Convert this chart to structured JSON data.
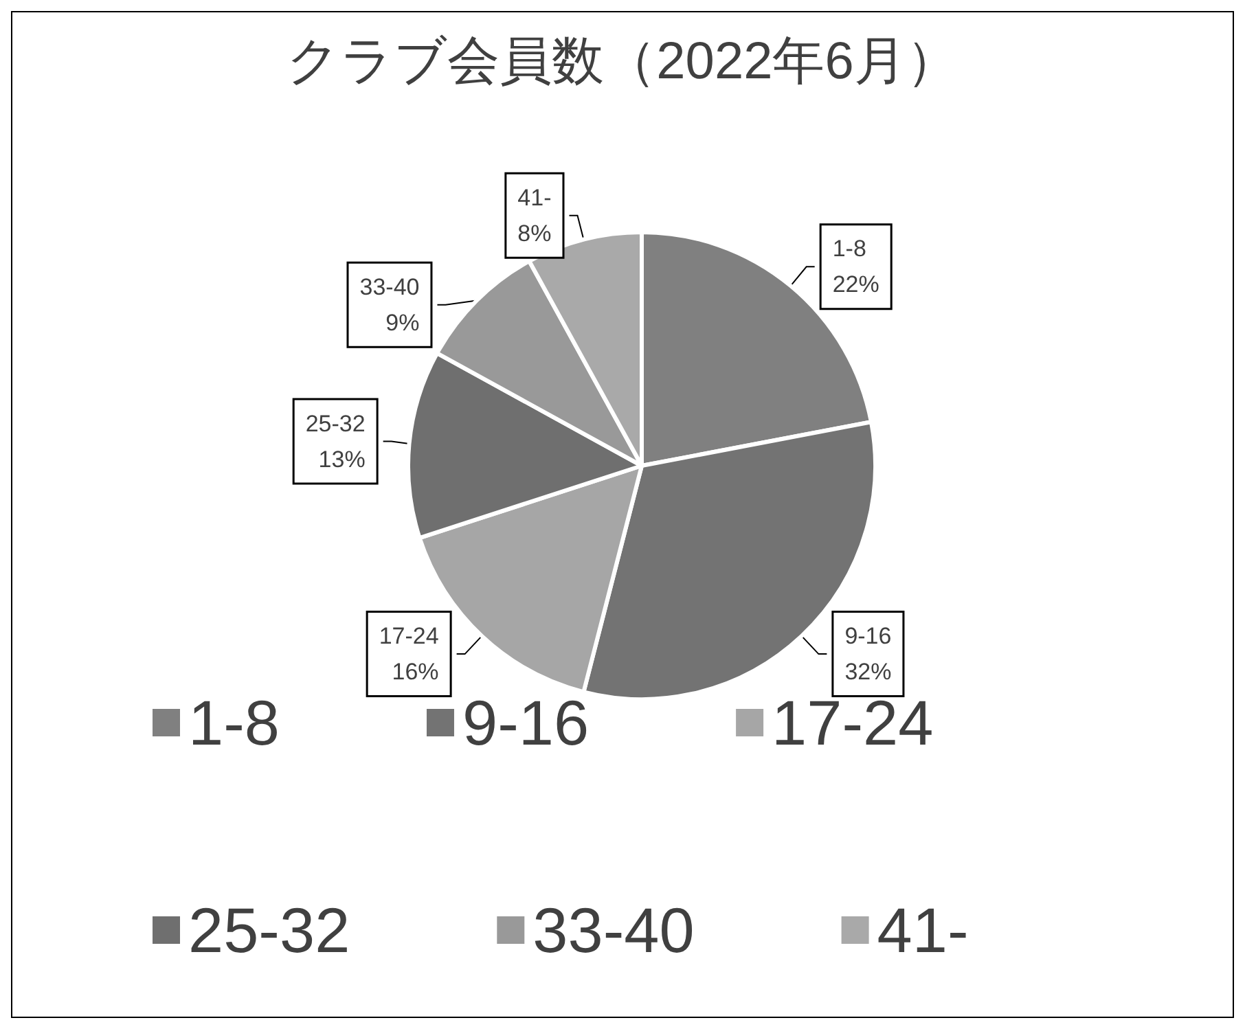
{
  "chart_data": {
    "type": "pie",
    "title": "クラブ会員数（2022年6月）",
    "categories": [
      "1-8",
      "9-16",
      "17-24",
      "25-32",
      "33-40",
      "41-"
    ],
    "values": [
      22,
      32,
      16,
      13,
      9,
      8
    ],
    "value_labels": [
      "22%",
      "32%",
      "16%",
      "13%",
      "9%",
      "8%"
    ],
    "colors": [
      "#808080",
      "#737373",
      "#a6a6a6",
      "#6f6f6f",
      "#999999",
      "#a9a9a9"
    ],
    "legend": "bottom"
  }
}
